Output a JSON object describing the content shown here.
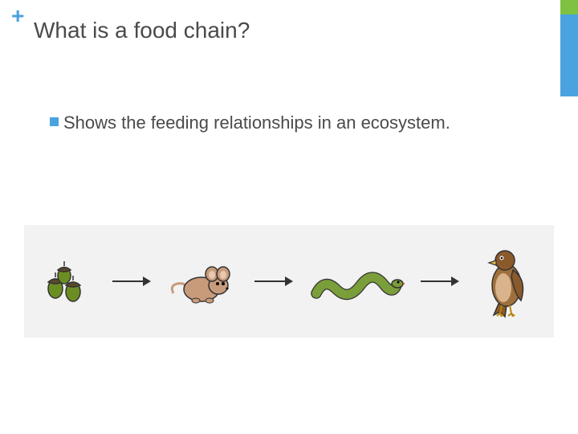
{
  "accent": {
    "segments": [
      {
        "color": "#7fc241",
        "height": 18
      },
      {
        "color": "#4aa3df",
        "height": 102
      }
    ]
  },
  "plus": {
    "glyph": "+",
    "color": "#4aa3df"
  },
  "title": {
    "text": "What is a food chain?",
    "color": "#4a4a4a",
    "fontsize": 28
  },
  "bullet": {
    "square_color": "#4aa3df",
    "text": "Shows the feeding relationships in an ecosystem.",
    "text_color": "#4a4a4a",
    "fontsize": 22
  },
  "diagram": {
    "background": "#f2f2f2",
    "arrow_color": "#333333",
    "items": [
      {
        "name": "acorns",
        "label": "acorns"
      },
      {
        "name": "mouse",
        "label": "mouse"
      },
      {
        "name": "snake",
        "label": "snake"
      },
      {
        "name": "hawk",
        "label": "hawk"
      }
    ]
  }
}
